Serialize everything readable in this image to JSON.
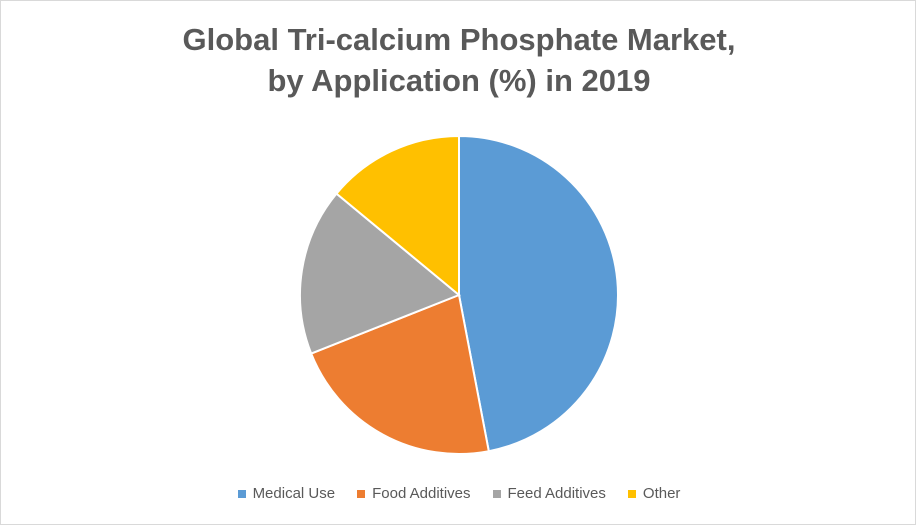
{
  "chart_data": {
    "type": "pie",
    "title_line1": "Global Tri-calcium Phosphate Market,",
    "title_line2": "by Application (%) in 2019",
    "categories": [
      "Medical Use",
      "Food Additives",
      "Feed Additives",
      "Other"
    ],
    "values": [
      47,
      22,
      17,
      14
    ],
    "colors": [
      "#5b9bd5",
      "#ed7d31",
      "#a5a5a5",
      "#ffc000"
    ],
    "start_angle": "12 o'clock, clockwise",
    "legend_position": "bottom"
  }
}
